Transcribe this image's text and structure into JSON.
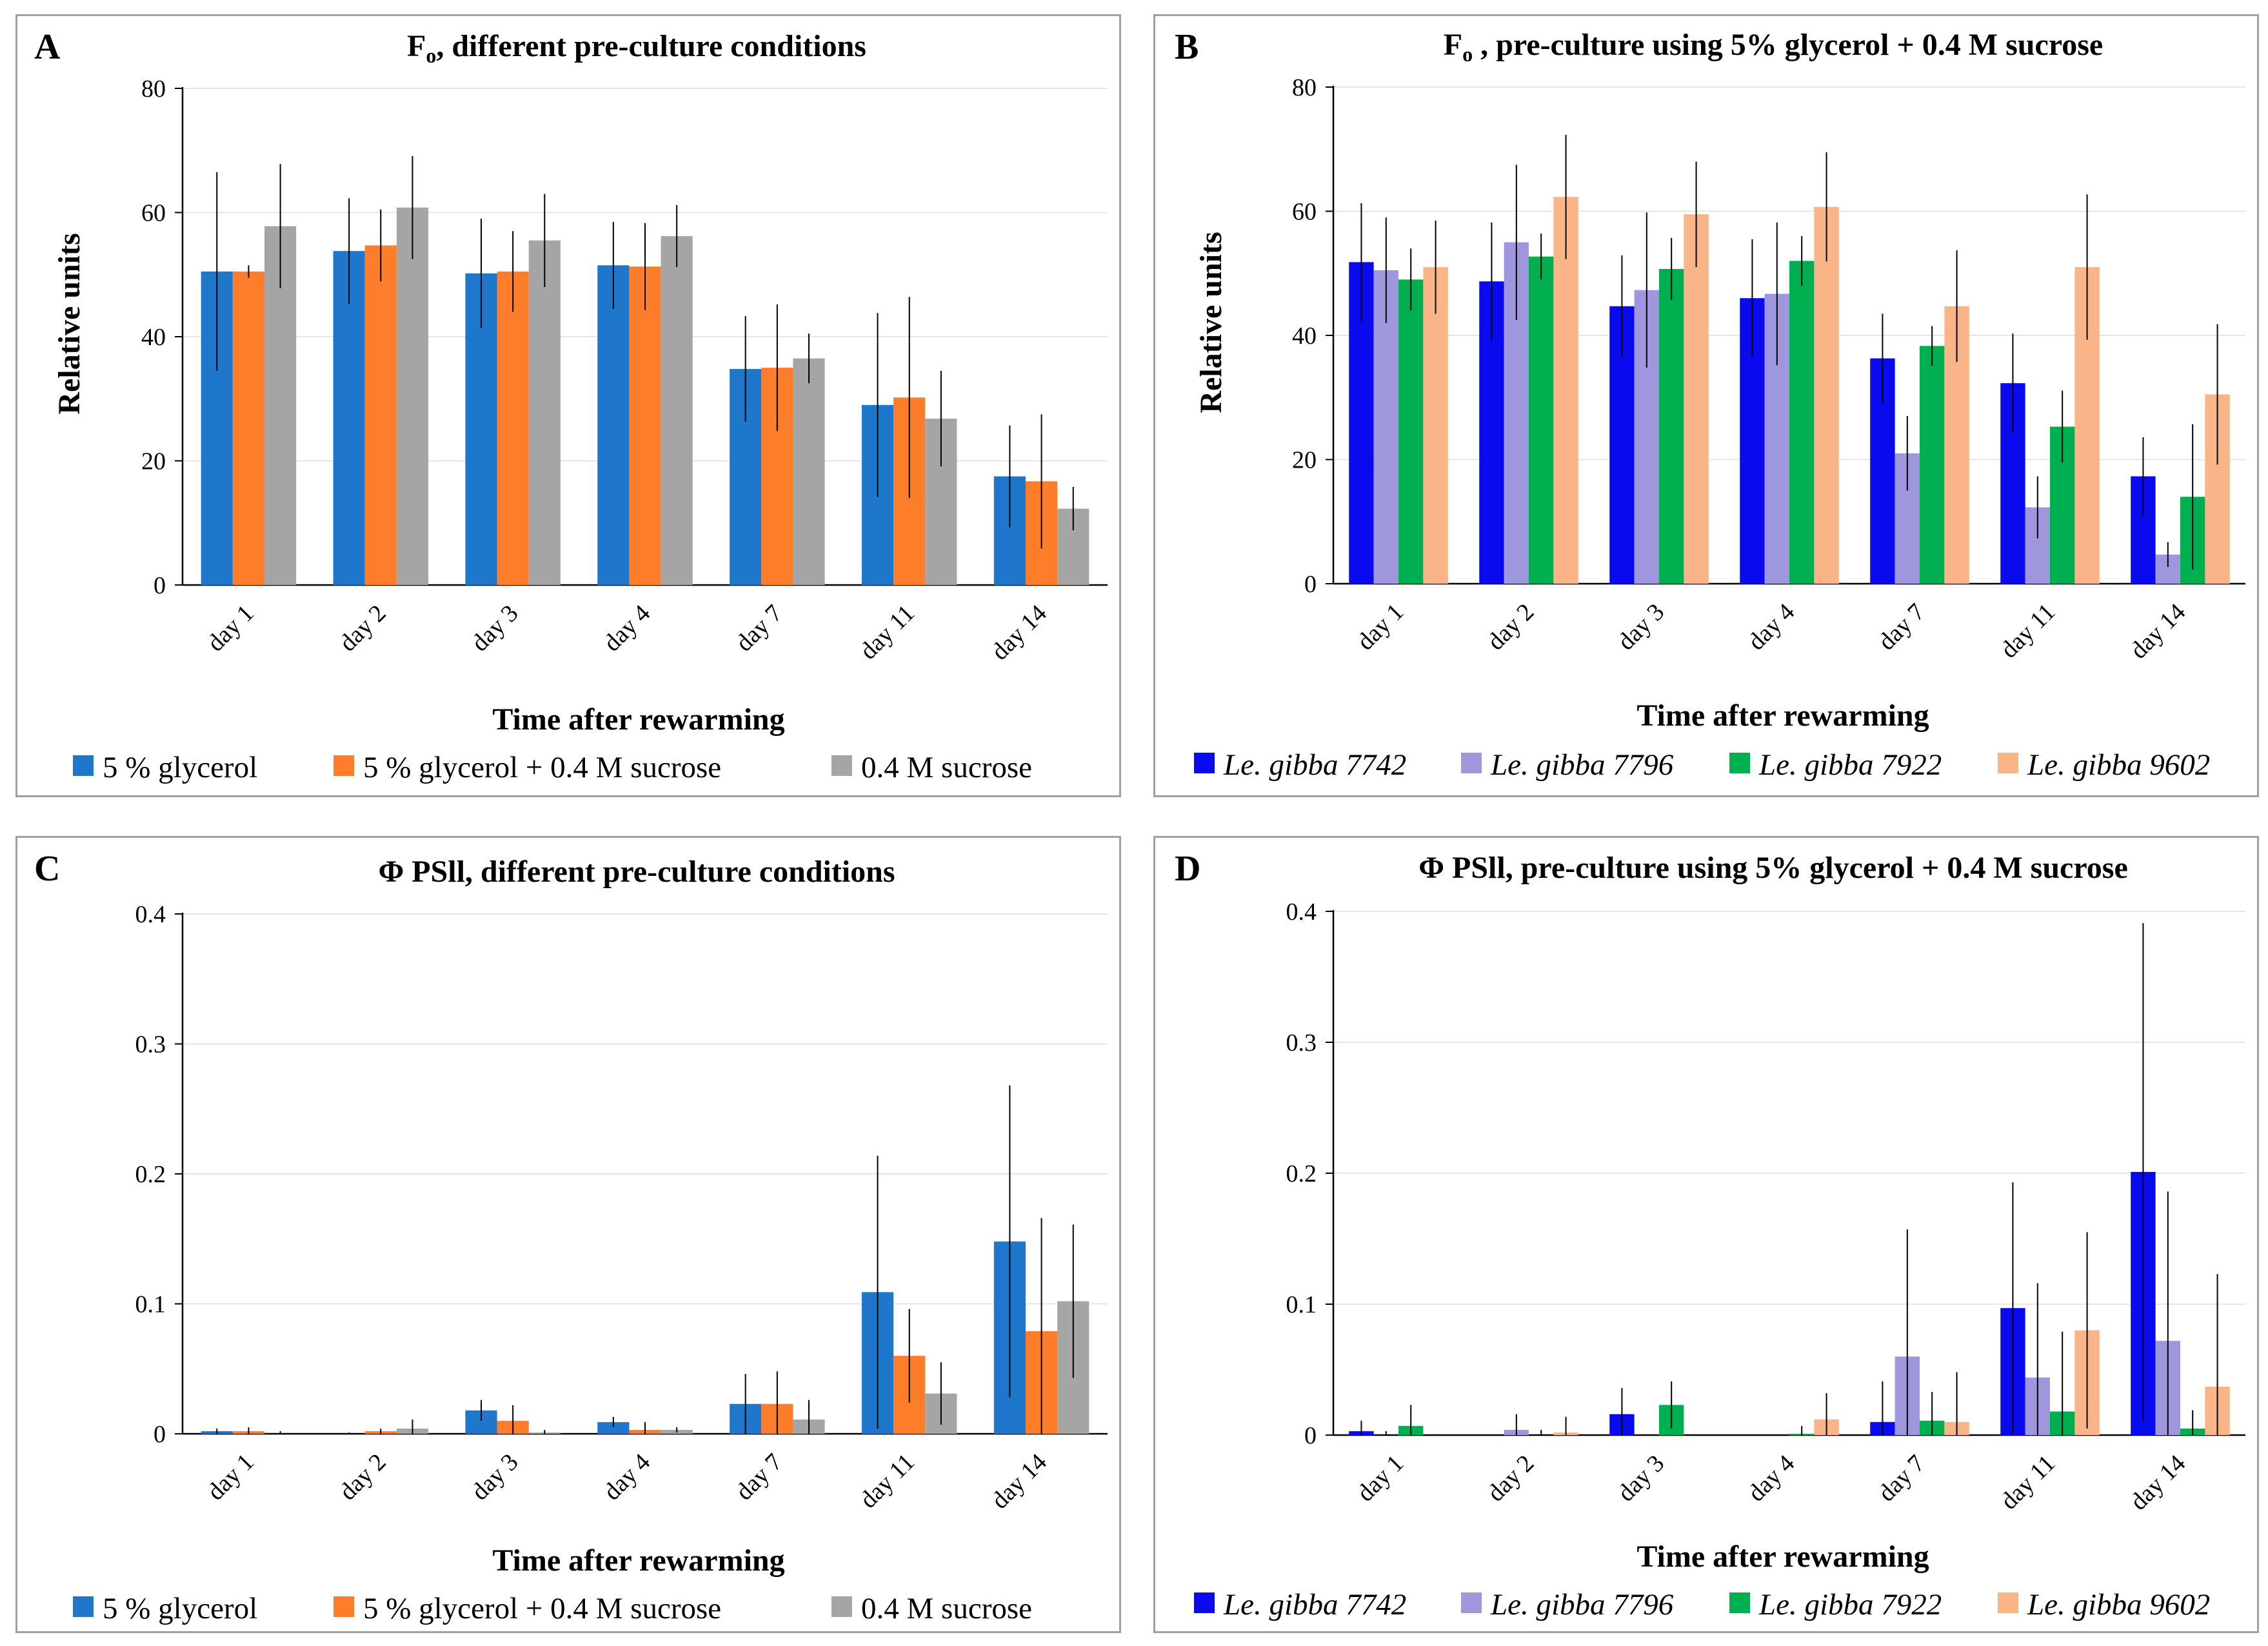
{
  "chart_data": [
    {
      "panel": "A",
      "type": "bar",
      "title_main": "F",
      "title_sub": "o",
      "title_rest": ", different pre-culture conditions",
      "xlabel": "Time after rewarming",
      "ylabel": "Relative units",
      "ylim": [
        0,
        80
      ],
      "yticks": [
        0,
        20,
        40,
        60,
        80
      ],
      "categories": [
        "day 1",
        "day 2",
        "day 3",
        "day 4",
        "day 7",
        "day 11",
        "day 14"
      ],
      "legend_italic": false,
      "series": [
        {
          "name": "5 % glycerol",
          "color": "#1f77cc",
          "values": [
            50.5,
            53.8,
            50.2,
            51.5,
            34.8,
            29.0,
            17.5
          ],
          "errors": [
            16.0,
            8.5,
            8.8,
            7.0,
            8.5,
            14.8,
            8.2
          ]
        },
        {
          "name": "5 % glycerol + 0.4 M sucrose",
          "color": "#fd7d2b",
          "values": [
            50.5,
            54.7,
            50.5,
            51.3,
            35.0,
            30.2,
            16.7
          ],
          "errors": [
            1.0,
            5.8,
            6.5,
            7.0,
            10.2,
            16.2,
            10.8
          ]
        },
        {
          "name": "0.4 M sucrose",
          "color": "#a5a5a5",
          "values": [
            57.8,
            60.8,
            55.5,
            56.2,
            36.5,
            26.8,
            12.3
          ],
          "errors": [
            10.0,
            8.3,
            7.5,
            5.0,
            4.0,
            7.7,
            3.5
          ]
        }
      ]
    },
    {
      "panel": "B",
      "type": "bar",
      "title_main": "F",
      "title_sub": "o",
      "title_rest": " , pre-culture using 5% glycerol + 0.4 M sucrose",
      "xlabel": "Time after rewarming",
      "ylabel": "Relative units",
      "ylim": [
        0,
        80
      ],
      "yticks": [
        0,
        20,
        40,
        60,
        80
      ],
      "categories": [
        "day 1",
        "day 2",
        "day 3",
        "day 4",
        "day 7",
        "day 11",
        "day 14"
      ],
      "legend_italic": true,
      "series": [
        {
          "name": "Le. gibba 7742",
          "color": "#0a0aee",
          "values": [
            51.8,
            48.7,
            44.7,
            46.0,
            36.3,
            32.3,
            17.3
          ],
          "errors": [
            9.5,
            9.5,
            8.2,
            9.5,
            7.2,
            8.0,
            6.3
          ]
        },
        {
          "name": "Le. gibba 7796",
          "color": "#9f97de",
          "values": [
            50.5,
            55.0,
            47.3,
            46.7,
            21.0,
            12.3,
            4.7
          ],
          "errors": [
            8.5,
            12.5,
            12.5,
            11.5,
            6.0,
            5.0,
            2.0
          ]
        },
        {
          "name": "Le. gibba 7922",
          "color": "#00b050",
          "values": [
            49.0,
            52.7,
            50.7,
            52.0,
            38.3,
            25.3,
            14.0
          ],
          "errors": [
            5.0,
            3.7,
            5.0,
            4.0,
            3.2,
            5.8,
            11.7
          ]
        },
        {
          "name": "Le. gibba 9602",
          "color": "#f9b487",
          "values": [
            51.0,
            62.3,
            59.5,
            60.7,
            44.7,
            51.0,
            30.5
          ],
          "errors": [
            7.5,
            10.0,
            8.5,
            8.8,
            9.0,
            11.7,
            11.3
          ]
        }
      ]
    },
    {
      "panel": "C",
      "type": "bar",
      "title_main": "Φ PSll, different pre-culture conditions",
      "title_sub": "",
      "title_rest": "",
      "xlabel": "Time after rewarming",
      "ylabel": "",
      "ylim": [
        0,
        0.4
      ],
      "yticks": [
        0,
        0.1,
        0.2,
        0.3,
        0.4
      ],
      "categories": [
        "day 1",
        "day 2",
        "day 3",
        "day 4",
        "day 7",
        "day 11",
        "day 14"
      ],
      "legend_italic": false,
      "series": [
        {
          "name": "5 % glycerol",
          "color": "#1f77cc",
          "values": [
            0.002,
            0.0,
            0.018,
            0.009,
            0.023,
            0.109,
            0.148
          ],
          "errors": [
            0.002,
            0.001,
            0.008,
            0.004,
            0.023,
            0.105,
            0.12
          ]
        },
        {
          "name": "5 % glycerol + 0.4 M sucrose",
          "color": "#fd7d2b",
          "values": [
            0.002,
            0.002,
            0.01,
            0.003,
            0.023,
            0.06,
            0.079
          ],
          "errors": [
            0.003,
            0.002,
            0.012,
            0.006,
            0.025,
            0.036,
            0.087
          ]
        },
        {
          "name": "0.4 M sucrose",
          "color": "#a5a5a5",
          "values": [
            0.0,
            0.004,
            0.001,
            0.003,
            0.011,
            0.031,
            0.102
          ],
          "errors": [
            0.002,
            0.007,
            0.002,
            0.002,
            0.015,
            0.024,
            0.059
          ]
        }
      ]
    },
    {
      "panel": "D",
      "type": "bar",
      "title_main": "Φ PSll, pre-culture using 5% glycerol + 0.4 M sucrose",
      "title_sub": "",
      "title_rest": "",
      "xlabel": "Time after rewarming",
      "ylabel": "",
      "ylim": [
        0,
        0.4
      ],
      "yticks": [
        0,
        0.1,
        0.2,
        0.3,
        0.4
      ],
      "categories": [
        "day 1",
        "day 2",
        "day 3",
        "day 4",
        "day 7",
        "day 11",
        "day 14"
      ],
      "legend_italic": true,
      "series": [
        {
          "name": "Le. gibba 7742",
          "color": "#0a0aee",
          "values": [
            0.003,
            0.0,
            0.016,
            0.0,
            0.01,
            0.097,
            0.201
          ],
          "errors": [
            0.008,
            0.0,
            0.02,
            0.0,
            0.031,
            0.096,
            0.19
          ]
        },
        {
          "name": "Le. gibba 7796",
          "color": "#9f97de",
          "values": [
            0.0,
            0.004,
            0.0,
            0.0,
            0.06,
            0.044,
            0.072
          ],
          "errors": [
            0.003,
            0.012,
            0.0,
            0.0,
            0.097,
            0.072,
            0.114
          ]
        },
        {
          "name": "Le. gibba 7922",
          "color": "#00b050",
          "values": [
            0.007,
            0.0,
            0.023,
            0.001,
            0.011,
            0.018,
            0.005
          ],
          "errors": [
            0.016,
            0.004,
            0.018,
            0.006,
            0.022,
            0.061,
            0.014
          ]
        },
        {
          "name": "Le. gibba 9602",
          "color": "#f9b487",
          "values": [
            0.0,
            0.002,
            0.0,
            0.012,
            0.01,
            0.08,
            0.037
          ],
          "errors": [
            0.0,
            0.012,
            0.0,
            0.02,
            0.038,
            0.075,
            0.086
          ]
        }
      ]
    }
  ]
}
